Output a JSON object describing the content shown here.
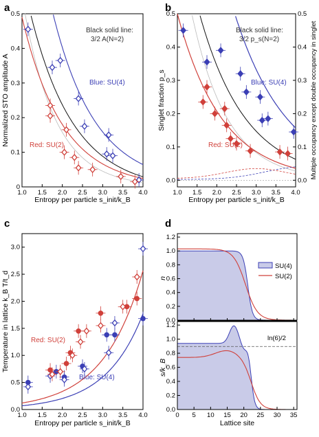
{
  "colors": {
    "su4": "#3b3fb5",
    "su2": "#d0403a",
    "black": "#111111",
    "gray": "#bbbbbb",
    "su4_fill": "#c9cbe8"
  },
  "chart_data": [
    {
      "id": "a",
      "type": "scatter",
      "letter": "a",
      "xlabel": "Entropy per particle s_init/k_B",
      "ylabel": "Normalized STO amplitude A",
      "xlim": [
        1.0,
        4.0
      ],
      "ylim": [
        0,
        0.5
      ],
      "xticks": [
        "1.0",
        "1.5",
        "2.0",
        "2.5",
        "3.0",
        "3.5",
        "4.0"
      ],
      "yticks": [
        "0",
        "0.1",
        "0.2",
        "0.3",
        "0.4",
        "0.5"
      ],
      "note_lines": [
        "Black solid line:",
        "3/2 A(N=2)"
      ],
      "labels": {
        "blue": "Blue: SU(4)",
        "red": "Red: SU(2)"
      },
      "series": [
        {
          "name": "SU(4)",
          "color": "#3b3fb5",
          "marker": "open-diamond",
          "points": [
            [
              1.15,
              0.455
            ],
            [
              1.75,
              0.345
            ],
            [
              1.95,
              0.365
            ],
            [
              2.4,
              0.255
            ],
            [
              2.55,
              0.175
            ],
            [
              3.1,
              0.095
            ],
            [
              3.15,
              0.15
            ],
            [
              3.25,
              0.09
            ],
            [
              3.9,
              0.02
            ]
          ]
        },
        {
          "name": "SU(2)",
          "color": "#d0403a",
          "marker": "open-diamond",
          "points": [
            [
              1.7,
              0.235
            ],
            [
              1.7,
              0.205
            ],
            [
              2.05,
              0.1
            ],
            [
              2.1,
              0.165
            ],
            [
              2.3,
              0.085
            ],
            [
              2.4,
              0.055
            ],
            [
              2.75,
              0.05
            ],
            [
              3.45,
              0.03
            ],
            [
              3.8,
              0.015
            ]
          ]
        }
      ]
    },
    {
      "id": "b",
      "type": "scatter",
      "letter": "b",
      "xlabel": "Entropy per particle s_init/k_B",
      "ylabel": "Singlet fraction p_s",
      "ylabel_right": "Multiple occupancy except double occupancy in singlet",
      "xlim": [
        1.0,
        4.0
      ],
      "ylim": [
        -0.02,
        0.5
      ],
      "xticks": [
        "1.0",
        "1.5",
        "2.0",
        "2.5",
        "3.0",
        "3.5",
        "4.0"
      ],
      "yticks": [
        "0.0",
        "0.1",
        "0.2",
        "0.3",
        "0.4",
        "0.5"
      ],
      "yticks_right": [
        "0.0",
        "0.1",
        "0.2",
        "0.3",
        "0.4",
        "0.5"
      ],
      "note_lines": [
        "Black solid line:",
        "3/2 p_s(N=2)"
      ],
      "labels": {
        "blue": "Blue: SU(4)",
        "red": "Red: SU(2)"
      },
      "series": [
        {
          "name": "SU(4)",
          "color": "#3b3fb5",
          "marker": "filled-diamond",
          "points": [
            [
              1.15,
              0.45
            ],
            [
              1.75,
              0.355
            ],
            [
              2.1,
              0.39
            ],
            [
              2.6,
              0.32
            ],
            [
              2.75,
              0.265
            ],
            [
              3.1,
              0.25
            ],
            [
              3.15,
              0.18
            ],
            [
              3.3,
              0.185
            ],
            [
              3.95,
              0.145
            ]
          ]
        },
        {
          "name": "SU(2)",
          "color": "#d0403a",
          "marker": "filled-diamond",
          "points": [
            [
              1.65,
              0.235
            ],
            [
              1.75,
              0.28
            ],
            [
              1.95,
              0.2
            ],
            [
              2.2,
              0.215
            ],
            [
              2.25,
              0.165
            ],
            [
              2.35,
              0.125
            ],
            [
              2.5,
              0.11
            ],
            [
              2.85,
              0.088
            ],
            [
              3.6,
              0.085
            ],
            [
              3.8,
              0.08
            ]
          ]
        }
      ]
    },
    {
      "id": "c",
      "type": "scatter",
      "letter": "c",
      "xlabel": "Entropy per particle s_init/k_B",
      "ylabel": "Temperature in lattice k_B T/t_d",
      "xlim": [
        1.0,
        4.0
      ],
      "ylim": [
        0,
        3.25
      ],
      "xticks": [
        "1.0",
        "1.5",
        "2.0",
        "2.5",
        "3.0",
        "3.5",
        "4.0"
      ],
      "yticks": [
        "0.0",
        "0.5",
        "1.0",
        "1.5",
        "2.0",
        "2.5",
        "3.0"
      ],
      "labels": {
        "blue": "Blue: SU(4)",
        "red": "Red: SU(2)"
      },
      "series": [
        {
          "name": "SU(4) filled",
          "color": "#3b3fb5",
          "marker": "filled-circle",
          "points": [
            [
              1.15,
              0.5
            ],
            [
              1.85,
              0.7
            ],
            [
              2.05,
              0.6
            ],
            [
              2.5,
              0.8
            ],
            [
              3.1,
              1.38
            ],
            [
              3.3,
              1.38
            ],
            [
              4.0,
              1.68
            ]
          ]
        },
        {
          "name": "SU(4) open",
          "color": "#3b3fb5",
          "marker": "open-diamond",
          "points": [
            [
              1.15,
              0.42
            ],
            [
              1.7,
              0.62
            ],
            [
              2.05,
              0.55
            ],
            [
              2.55,
              0.75
            ],
            [
              3.15,
              1.05
            ],
            [
              3.3,
              1.6
            ],
            [
              4.0,
              2.97
            ]
          ]
        },
        {
          "name": "SU(2) filled",
          "color": "#d0403a",
          "marker": "filled-circle",
          "points": [
            [
              1.7,
              0.73
            ],
            [
              2.1,
              0.85
            ],
            [
              2.2,
              1.05
            ],
            [
              2.4,
              1.45
            ],
            [
              2.95,
              1.78
            ],
            [
              3.6,
              1.9
            ],
            [
              3.85,
              2.05
            ]
          ]
        },
        {
          "name": "SU(2) open",
          "color": "#d0403a",
          "marker": "open-diamond",
          "points": [
            [
              1.75,
              0.65
            ],
            [
              1.95,
              0.7
            ],
            [
              2.25,
              1.0
            ],
            [
              2.45,
              1.25
            ],
            [
              2.6,
              1.45
            ],
            [
              2.95,
              1.55
            ],
            [
              3.5,
              1.9
            ],
            [
              3.85,
              2.45
            ]
          ]
        }
      ]
    },
    {
      "id": "d",
      "type": "line",
      "letter": "d",
      "xlabel": "Lattice site",
      "xlim": [
        0,
        36
      ],
      "xticks": [
        "0",
        "5",
        "10",
        "15",
        "20",
        "25",
        "30",
        "35"
      ],
      "top": {
        "ylabel": "n",
        "ylim": [
          0,
          1.25
        ],
        "yticks": [
          "0.0",
          "0.2",
          "0.4",
          "0.6",
          "0.8",
          "1.0",
          "1.2"
        ],
        "legend": [
          "SU(4)",
          "SU(2)"
        ]
      },
      "bottom": {
        "ylabel": "s/k_B",
        "ylim": [
          0,
          1.25
        ],
        "yticks": [
          "0.0",
          "0.2",
          "0.4",
          "0.6",
          "0.8",
          "1.0",
          "1.2"
        ],
        "ref_label": "ln(6)/2",
        "ref_value": 0.896
      }
    }
  ]
}
